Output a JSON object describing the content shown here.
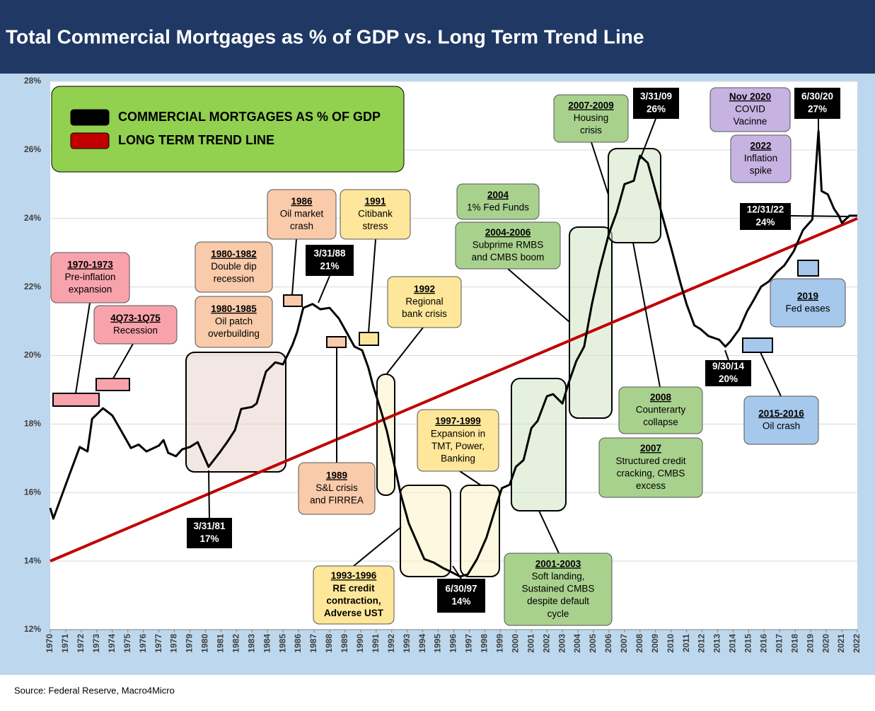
{
  "chart_data": {
    "type": "line",
    "title": "Total Commercial Mortgages as % of GDP vs. Long Term Trend Line",
    "source": "Source: Federal Reserve, Macro4Micro",
    "xlim": [
      1970,
      2022
    ],
    "xticks": [
      1970,
      1971,
      1972,
      1973,
      1974,
      1975,
      1976,
      1977,
      1978,
      1979,
      1980,
      1981,
      1982,
      1983,
      1984,
      1985,
      1986,
      1987,
      1988,
      1989,
      1990,
      1991,
      1992,
      1993,
      1994,
      1995,
      1996,
      1997,
      1998,
      1999,
      2000,
      2001,
      2002,
      2003,
      2004,
      2005,
      2006,
      2007,
      2008,
      2009,
      2010,
      2011,
      2012,
      2013,
      2014,
      2015,
      2016,
      2017,
      2018,
      2019,
      2020,
      2021,
      2022
    ],
    "ylim": [
      12,
      28
    ],
    "yticks": [
      {
        "value": 12,
        "label": "12%"
      },
      {
        "value": 14,
        "label": "14%"
      },
      {
        "value": 16,
        "label": "16%"
      },
      {
        "value": 18,
        "label": "18%"
      },
      {
        "value": 20,
        "label": "20%"
      },
      {
        "value": 22,
        "label": "22%"
      },
      {
        "value": 24,
        "label": "24%"
      },
      {
        "value": 26,
        "label": "26%"
      },
      {
        "value": 28,
        "label": "28%"
      }
    ],
    "grid": true,
    "series": [
      {
        "name": "COMMERCIAL MORTGAGES AS % OF GDP",
        "color": "#000000",
        "x": [
          1970.0,
          1970.2,
          1971.0,
          1971.9,
          1972.4,
          1972.7,
          1973.4,
          1974.0,
          1974.6,
          1975.2,
          1975.7,
          1976.2,
          1977.0,
          1977.3,
          1977.6,
          1978.1,
          1978.5,
          1979.0,
          1979.5,
          1980.2,
          1980.9,
          1981.4,
          1981.9,
          1982.3,
          1983.0,
          1983.3,
          1983.9,
          1984.5,
          1985.0,
          1985.6,
          1985.9,
          1986.3,
          1986.9,
          1987.4,
          1988.0,
          1988.6,
          1989.1,
          1989.6,
          1990.1,
          1990.5,
          1990.8,
          1991.3,
          1991.7,
          1992.1,
          1992.6,
          1993.1,
          1993.7,
          1994.1,
          1994.7,
          1995.3,
          1995.8,
          1996.4,
          1996.9,
          1997.5,
          1998.1,
          1998.6,
          1999.1,
          1999.6,
          2000.0,
          2000.5,
          2001.0,
          2001.4,
          2002.0,
          2002.4,
          2003.0,
          2003.4,
          2003.9,
          2004.4,
          2004.9,
          2005.4,
          2006.0,
          2006.5,
          2007.0,
          2007.6,
          2008.0,
          2008.5,
          2009.0,
          2009.5,
          2010.0,
          2010.6,
          2011.0,
          2011.5,
          2011.9,
          2012.4,
          2013.1,
          2013.5,
          2013.8,
          2014.4,
          2014.9,
          2015.3,
          2015.8,
          2016.3,
          2016.8,
          2017.3,
          2017.9,
          2018.5,
          2019.1,
          2019.5,
          2019.7,
          2020.1,
          2020.5,
          2020.8,
          2021.0,
          2021.5,
          2022.0
        ],
        "values": [
          15.55,
          15.24,
          16.23,
          17.33,
          17.2,
          18.15,
          18.46,
          18.25,
          17.78,
          17.3,
          17.4,
          17.2,
          17.37,
          17.53,
          17.16,
          17.06,
          17.26,
          17.33,
          17.47,
          16.75,
          17.16,
          17.47,
          17.82,
          18.44,
          18.5,
          18.6,
          19.53,
          19.8,
          19.74,
          20.3,
          20.67,
          21.39,
          21.5,
          21.35,
          21.39,
          21.08,
          20.67,
          20.26,
          20.15,
          19.64,
          19.12,
          18.4,
          17.78,
          16.95,
          15.92,
          15.1,
          14.48,
          14.06,
          13.96,
          13.8,
          13.69,
          13.55,
          13.61,
          14.06,
          14.68,
          15.41,
          16.13,
          16.23,
          16.75,
          16.95,
          17.88,
          18.09,
          18.81,
          18.87,
          18.6,
          19.2,
          19.84,
          20.26,
          21.5,
          22.53,
          23.56,
          24.18,
          25.0,
          25.1,
          25.83,
          25.62,
          24.8,
          23.97,
          23.15,
          22.12,
          21.5,
          20.88,
          20.77,
          20.57,
          20.46,
          20.26,
          20.4,
          20.77,
          21.29,
          21.6,
          22.01,
          22.16,
          22.43,
          22.63,
          23.04,
          23.66,
          23.97,
          26.55,
          24.8,
          24.7,
          24.28,
          24.08,
          23.87,
          24.08,
          24.08
        ]
      },
      {
        "name": "LONG TERM TREND LINE",
        "color": "#c00000",
        "x": [
          1970,
          2022
        ],
        "values": [
          14,
          24
        ]
      }
    ],
    "annotations": [
      {
        "lines": [
          "1970-1973",
          "Pre-inflation",
          "expansion"
        ],
        "color": "#f8a3ab"
      },
      {
        "lines": [
          "4Q73-1Q75",
          "Recession"
        ],
        "color": "#f8a3ab"
      },
      {
        "lines": [
          "1980-1982",
          "Double dip",
          "recession"
        ],
        "color": "#f9cbaa"
      },
      {
        "lines": [
          "1980-1985",
          "Oil patch",
          "overbuilding"
        ],
        "color": "#f9cbaa"
      },
      {
        "lines": [
          "1986",
          "Oil market",
          "crash"
        ],
        "color": "#f9cbaa"
      },
      {
        "lines": [
          "1991",
          "Citibank",
          "stress"
        ],
        "color": "#fee79a"
      },
      {
        "lines": [
          "1992",
          "Regional",
          "bank crisis"
        ],
        "color": "#fee79a"
      },
      {
        "lines": [
          "1989",
          "S&L crisis",
          "and FIRREA"
        ],
        "color": "#f9cbaa"
      },
      {
        "lines": [
          "1993-1996",
          "RE credit",
          "contraction,",
          "Adverse UST"
        ],
        "color": "#fee79a"
      },
      {
        "lines": [
          "1997-1999",
          "Expansion in",
          "TMT, Power,",
          "Banking"
        ],
        "color": "#fee79a"
      },
      {
        "lines": [
          "2004",
          "1% Fed Funds"
        ],
        "color": "#a9d18e"
      },
      {
        "lines": [
          "2004-2006",
          "Subprime RMBS",
          "and CMBS boom"
        ],
        "color": "#a9d18e"
      },
      {
        "lines": [
          "2007-2009",
          "Housing",
          "crisis"
        ],
        "color": "#a9d18e"
      },
      {
        "lines": [
          "2001-2003",
          "Soft landing,",
          "Sustained CMBS",
          "despite default",
          "cycle"
        ],
        "color": "#a9d18e"
      },
      {
        "lines": [
          "2008",
          "Counterarty",
          "collapse"
        ],
        "color": "#a9d18e"
      },
      {
        "lines": [
          "2007",
          "Structured credit",
          "cracking, CMBS",
          "excess"
        ],
        "color": "#a9d18e"
      },
      {
        "lines": [
          "Nov 2020",
          "COVID",
          "Vacinne"
        ],
        "color": "#c7b3e2"
      },
      {
        "lines": [
          "2022",
          "Inflation",
          "spike"
        ],
        "color": "#c7b3e2"
      },
      {
        "lines": [
          "2019",
          "Fed eases"
        ],
        "color": "#a6c8ec"
      },
      {
        "lines": [
          "2015-2016",
          "Oil crash"
        ],
        "color": "#a6c8ec"
      }
    ],
    "callouts": [
      {
        "lines": [
          "3/31/81",
          "17%"
        ]
      },
      {
        "lines": [
          "3/31/88",
          "21%"
        ]
      },
      {
        "lines": [
          "6/30/97",
          "14%"
        ]
      },
      {
        "lines": [
          "3/31/09",
          "26%"
        ]
      },
      {
        "lines": [
          "9/30/14",
          "20%"
        ]
      },
      {
        "lines": [
          "6/30/20",
          "27%"
        ]
      },
      {
        "lines": [
          "12/31/22",
          "24%"
        ]
      }
    ]
  }
}
